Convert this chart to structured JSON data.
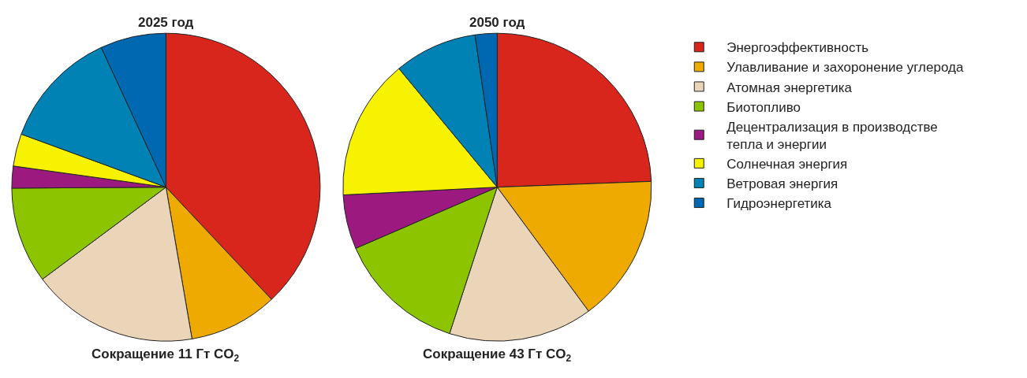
{
  "chart_data": [
    {
      "type": "pie",
      "title": "2025 год",
      "annotations": [
        "Сокращение 11 Гт CO$_{2}$"
      ],
      "legend": "right",
      "categories": [
        "Энергоэффективность",
        "Улавливание и захоронение углерода",
        "Атомная энергетика",
        "Биотопливо",
        "Децентрализация в производстве тепла и энергии",
        "Солнечная энергия",
        "Ветровая энергия",
        "Гидроэнергетика"
      ],
      "values": [
        38.0,
        9.3,
        17.5,
        10.1,
        2.3,
        3.4,
        12.5,
        6.9
      ],
      "colors": [
        "#d9261c",
        "#eeaa00",
        "#ebd5b9",
        "#8dc400",
        "#9c1a80",
        "#f7f300",
        "#0083b4",
        "#0067b1"
      ]
    },
    {
      "type": "pie",
      "title": "2050 год",
      "annotations": [
        "Сокращение 43 Гт CO$_{2}$"
      ],
      "categories": [
        null,
        null,
        null,
        null,
        null,
        null,
        null,
        null
      ],
      "values": [
        24.4,
        15.5,
        15.1,
        13.5,
        5.7,
        14.8,
        8.7,
        2.3
      ],
      "colors": [
        "#d9261c",
        "#eeaa00",
        "#ebd5b9",
        "#8dc400",
        "#9c1a80",
        "#f7f300",
        "#0083b4",
        "#0067b1"
      ]
    }
  ]
}
